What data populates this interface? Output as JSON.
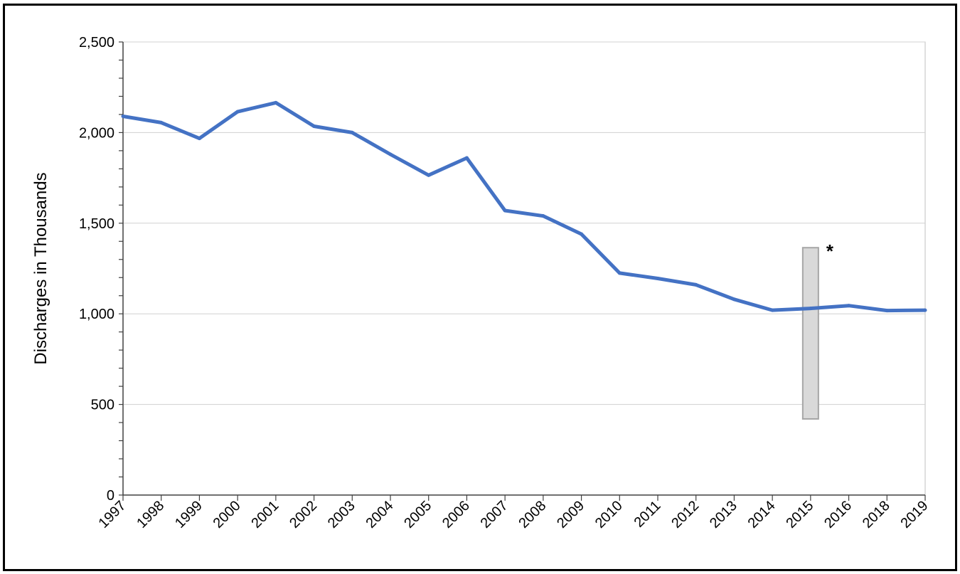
{
  "chart_data": {
    "type": "line",
    "title": "",
    "xlabel": "",
    "ylabel": "Discharges in Thousands",
    "ylim": [
      0,
      2500
    ],
    "yticks": [
      0,
      500,
      1000,
      1500,
      2000,
      2500
    ],
    "ytick_labels": [
      "0",
      "500",
      "1,000",
      "1,500",
      "2,000",
      "2,500"
    ],
    "grid": true,
    "legend": "none",
    "categories": [
      "1997",
      "1998",
      "1999",
      "2000",
      "2001",
      "2002",
      "2003",
      "2004",
      "2005",
      "2006",
      "2007",
      "2008",
      "2009",
      "2010",
      "2011",
      "2012",
      "2013",
      "2014",
      "2015",
      "2016",
      "2018",
      "2019"
    ],
    "series": [
      {
        "values": [
          2090,
          2055,
          1968,
          2115,
          2165,
          2035,
          2000,
          1880,
          1765,
          1860,
          1570,
          1540,
          1440,
          1225,
          1195,
          1160,
          1080,
          1020,
          1030,
          1045,
          1018,
          1020
        ],
        "color": "#4472C4"
      }
    ],
    "annotation": {
      "marker": "*",
      "category_index": 18,
      "box_range": [
        420,
        1365
      ],
      "box_fill": "#d9d9d9",
      "box_stroke": "#a6a6a6"
    }
  }
}
